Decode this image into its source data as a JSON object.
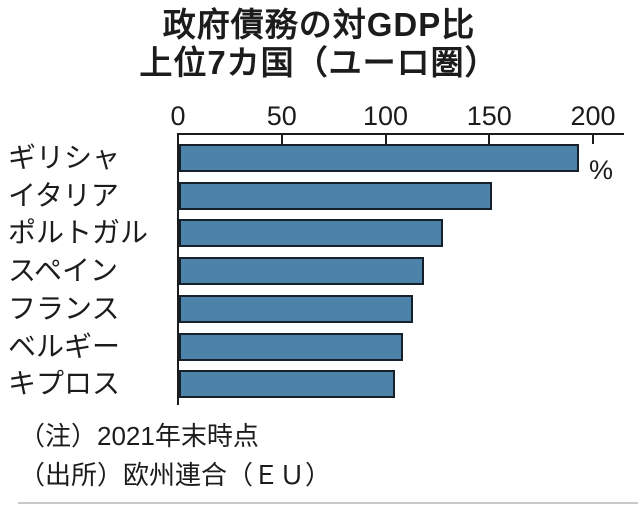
{
  "title": {
    "line1": "政府債務の対GDP比",
    "line2": "上位7カ国（ユーロ圏）"
  },
  "chart_data": {
    "type": "bar",
    "orientation": "horizontal",
    "title": "政府債務の対GDP比 上位7カ国（ユーロ圏）",
    "categories": [
      "ギリシャ",
      "イタリア",
      "ポルトガル",
      "スペイン",
      "フランス",
      "ベルギー",
      "キプロス"
    ],
    "values": [
      193,
      151,
      127,
      118,
      113,
      108,
      104
    ],
    "unit_label": "%",
    "x_ticks": [
      0,
      50,
      100,
      150,
      200
    ],
    "xlim": [
      0,
      200
    ],
    "grid": false,
    "tick_side": "top",
    "bar_color": "#4d83a8",
    "bar_border_color": "#15202b",
    "axis_color": "#1c1c1c"
  },
  "notes": {
    "note": "（注）2021年末時点",
    "source": "（出所）欧州連合（ＥＵ）"
  }
}
